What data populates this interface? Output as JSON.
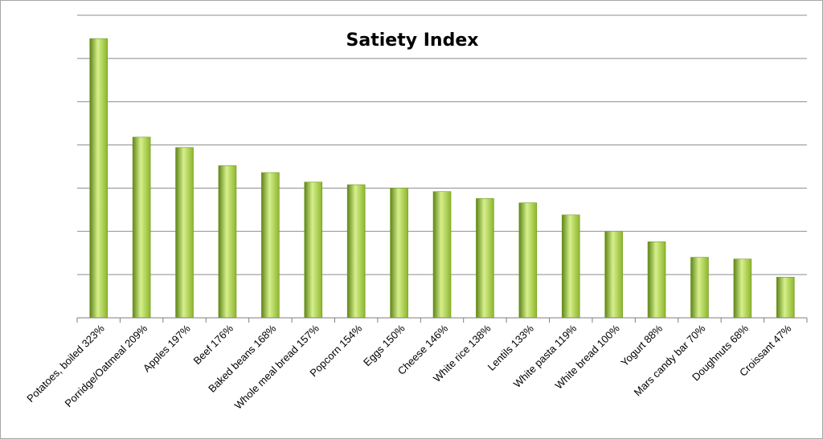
{
  "chart_data": {
    "type": "bar",
    "title": "Satiety Index",
    "xlabel": "",
    "ylabel": "",
    "categories": [
      "Potatoes, boiled 323%",
      "Porridge/Oatmeal 209%",
      "Apples 197%",
      "Beef 176%",
      "Baked beans 168%",
      "Whole meal bread 157%",
      "Popcorn 154%",
      "Eggs 150%",
      "Cheese 146%",
      "White rice 138%",
      "Lentils 133%",
      "White pasta 119%",
      "White bread 100%",
      "Yogurt 88%",
      "Mars candy bar 70%",
      "Doughnuts 68%",
      "Croissant 47%"
    ],
    "values": [
      323,
      209,
      197,
      176,
      168,
      157,
      154,
      150,
      146,
      138,
      133,
      119,
      100,
      88,
      70,
      68,
      47
    ],
    "ylim": [
      0,
      350
    ],
    "gridlines": [
      0,
      50,
      100,
      150,
      200,
      250,
      300,
      350
    ],
    "grid": true,
    "legend": false,
    "y_tick_labels_visible": false,
    "bar_color": "#8db52c",
    "bar_highlight": "#d6f08c",
    "bar_dark": "#5f8418"
  }
}
